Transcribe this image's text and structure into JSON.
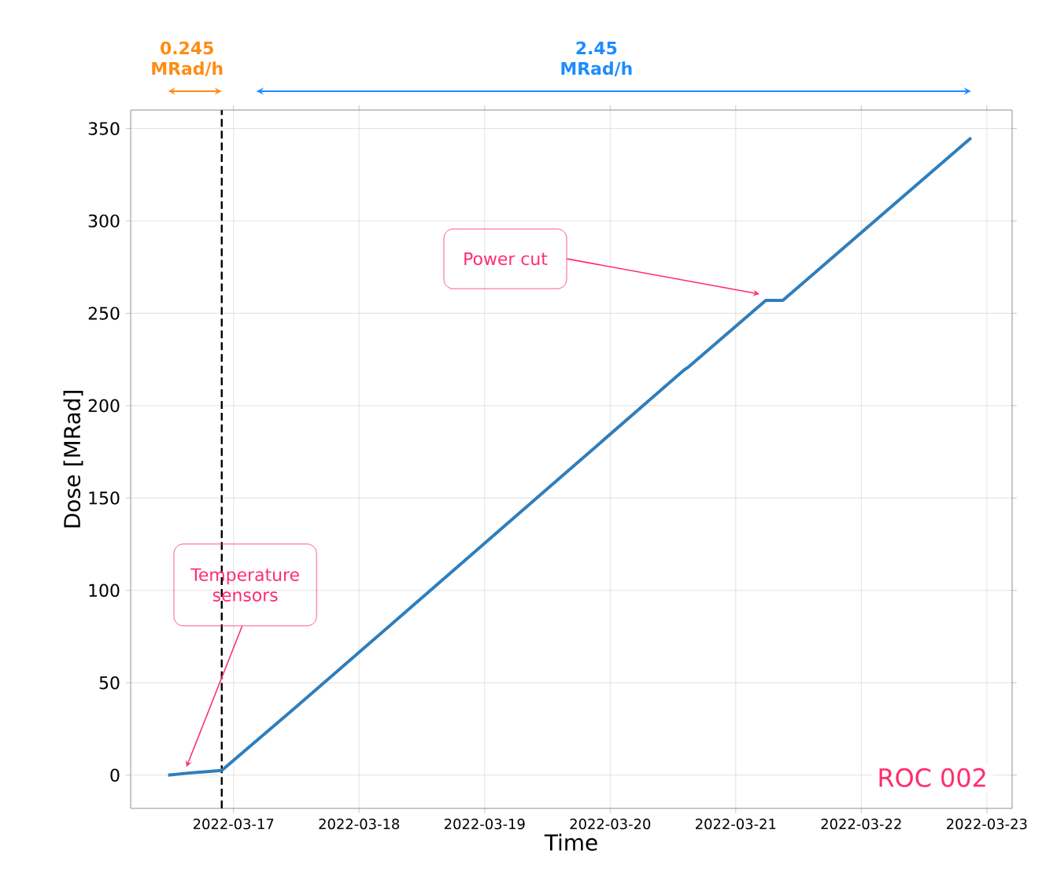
{
  "chart_data": {
    "type": "line",
    "xlabel": "Time",
    "ylabel": "Dose [MRad]",
    "x": [
      "2022-03-16T11:30",
      "2022-03-16T15:00",
      "2022-03-16T21:45",
      "2022-03-17T12:00",
      "2022-03-18T12:00",
      "2022-03-19T12:00",
      "2022-03-20T14:00",
      "2022-03-20T15:00",
      "2022-03-21T05:45",
      "2022-03-21T09:00",
      "2022-03-22T21:00"
    ],
    "series": [
      {
        "color": "#2f7ebc",
        "values": [
          0,
          1,
          2.5,
          37,
          96,
          155,
          219,
          221,
          257,
          257,
          345
        ]
      }
    ],
    "xlim": [
      "2022-03-16T04:20",
      "2022-03-23T04:50"
    ],
    "ylim": [
      -18,
      360
    ],
    "xticks": [
      "2022-03-17",
      "2022-03-18",
      "2022-03-19",
      "2022-03-20",
      "2022-03-21",
      "2022-03-22",
      "2022-03-23"
    ],
    "yticks": [
      0,
      50,
      100,
      150,
      200,
      250,
      300,
      350
    ],
    "grid": true,
    "marker": "none",
    "line_style": "solid",
    "ref_lines": [
      {
        "axis": "x",
        "value": "2022-03-16T21:45",
        "color": "#000000",
        "line_style": "dashed"
      }
    ],
    "annotations": [
      "0.245 MRad/h",
      "2.45 MRad/h",
      {
        "text": "Power cut",
        "x": "2022-03-21T05:45",
        "y": 257
      },
      "Temperature sensors",
      "ROC 002"
    ]
  }
}
